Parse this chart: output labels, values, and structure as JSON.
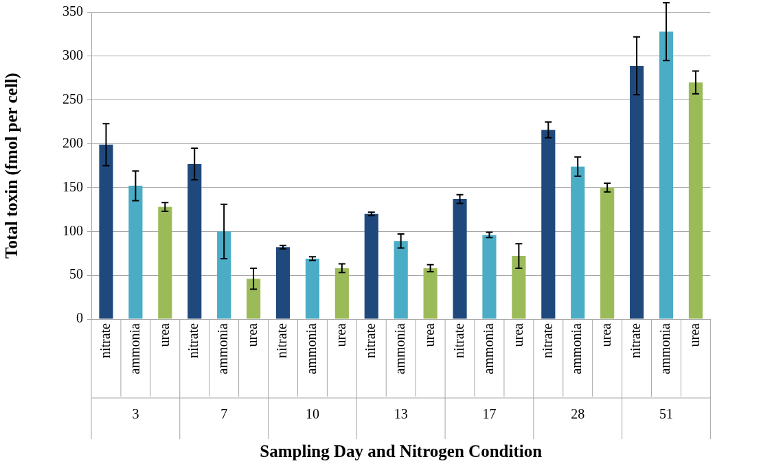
{
  "chart_data": {
    "type": "bar",
    "xlabel": "Sampling Day and Nitrogen Condition",
    "ylabel": "Total toxin (fmol per cell)",
    "categories": [
      "3",
      "7",
      "10",
      "13",
      "17",
      "28",
      "51"
    ],
    "series": [
      {
        "name": "nitrate",
        "color": "#1f497d",
        "values": [
          199,
          177,
          82,
          120,
          137,
          216,
          289
        ],
        "errors": [
          24,
          18,
          2,
          2,
          5,
          9,
          33
        ]
      },
      {
        "name": "ammonia",
        "color": "#4bacc6",
        "values": [
          152,
          100,
          69,
          89,
          96,
          174,
          328
        ],
        "errors": [
          17,
          31,
          2,
          8,
          3,
          11,
          33
        ]
      },
      {
        "name": "urea",
        "color": "#9bbb59",
        "values": [
          128,
          46,
          58,
          58,
          72,
          150,
          270
        ],
        "errors": [
          5,
          12,
          5,
          4,
          14,
          5,
          13
        ]
      }
    ],
    "ylim": [
      0,
      350
    ],
    "yticks": [
      0,
      50,
      100,
      150,
      200,
      250,
      300,
      350
    ],
    "grid": "y",
    "legend": false
  }
}
